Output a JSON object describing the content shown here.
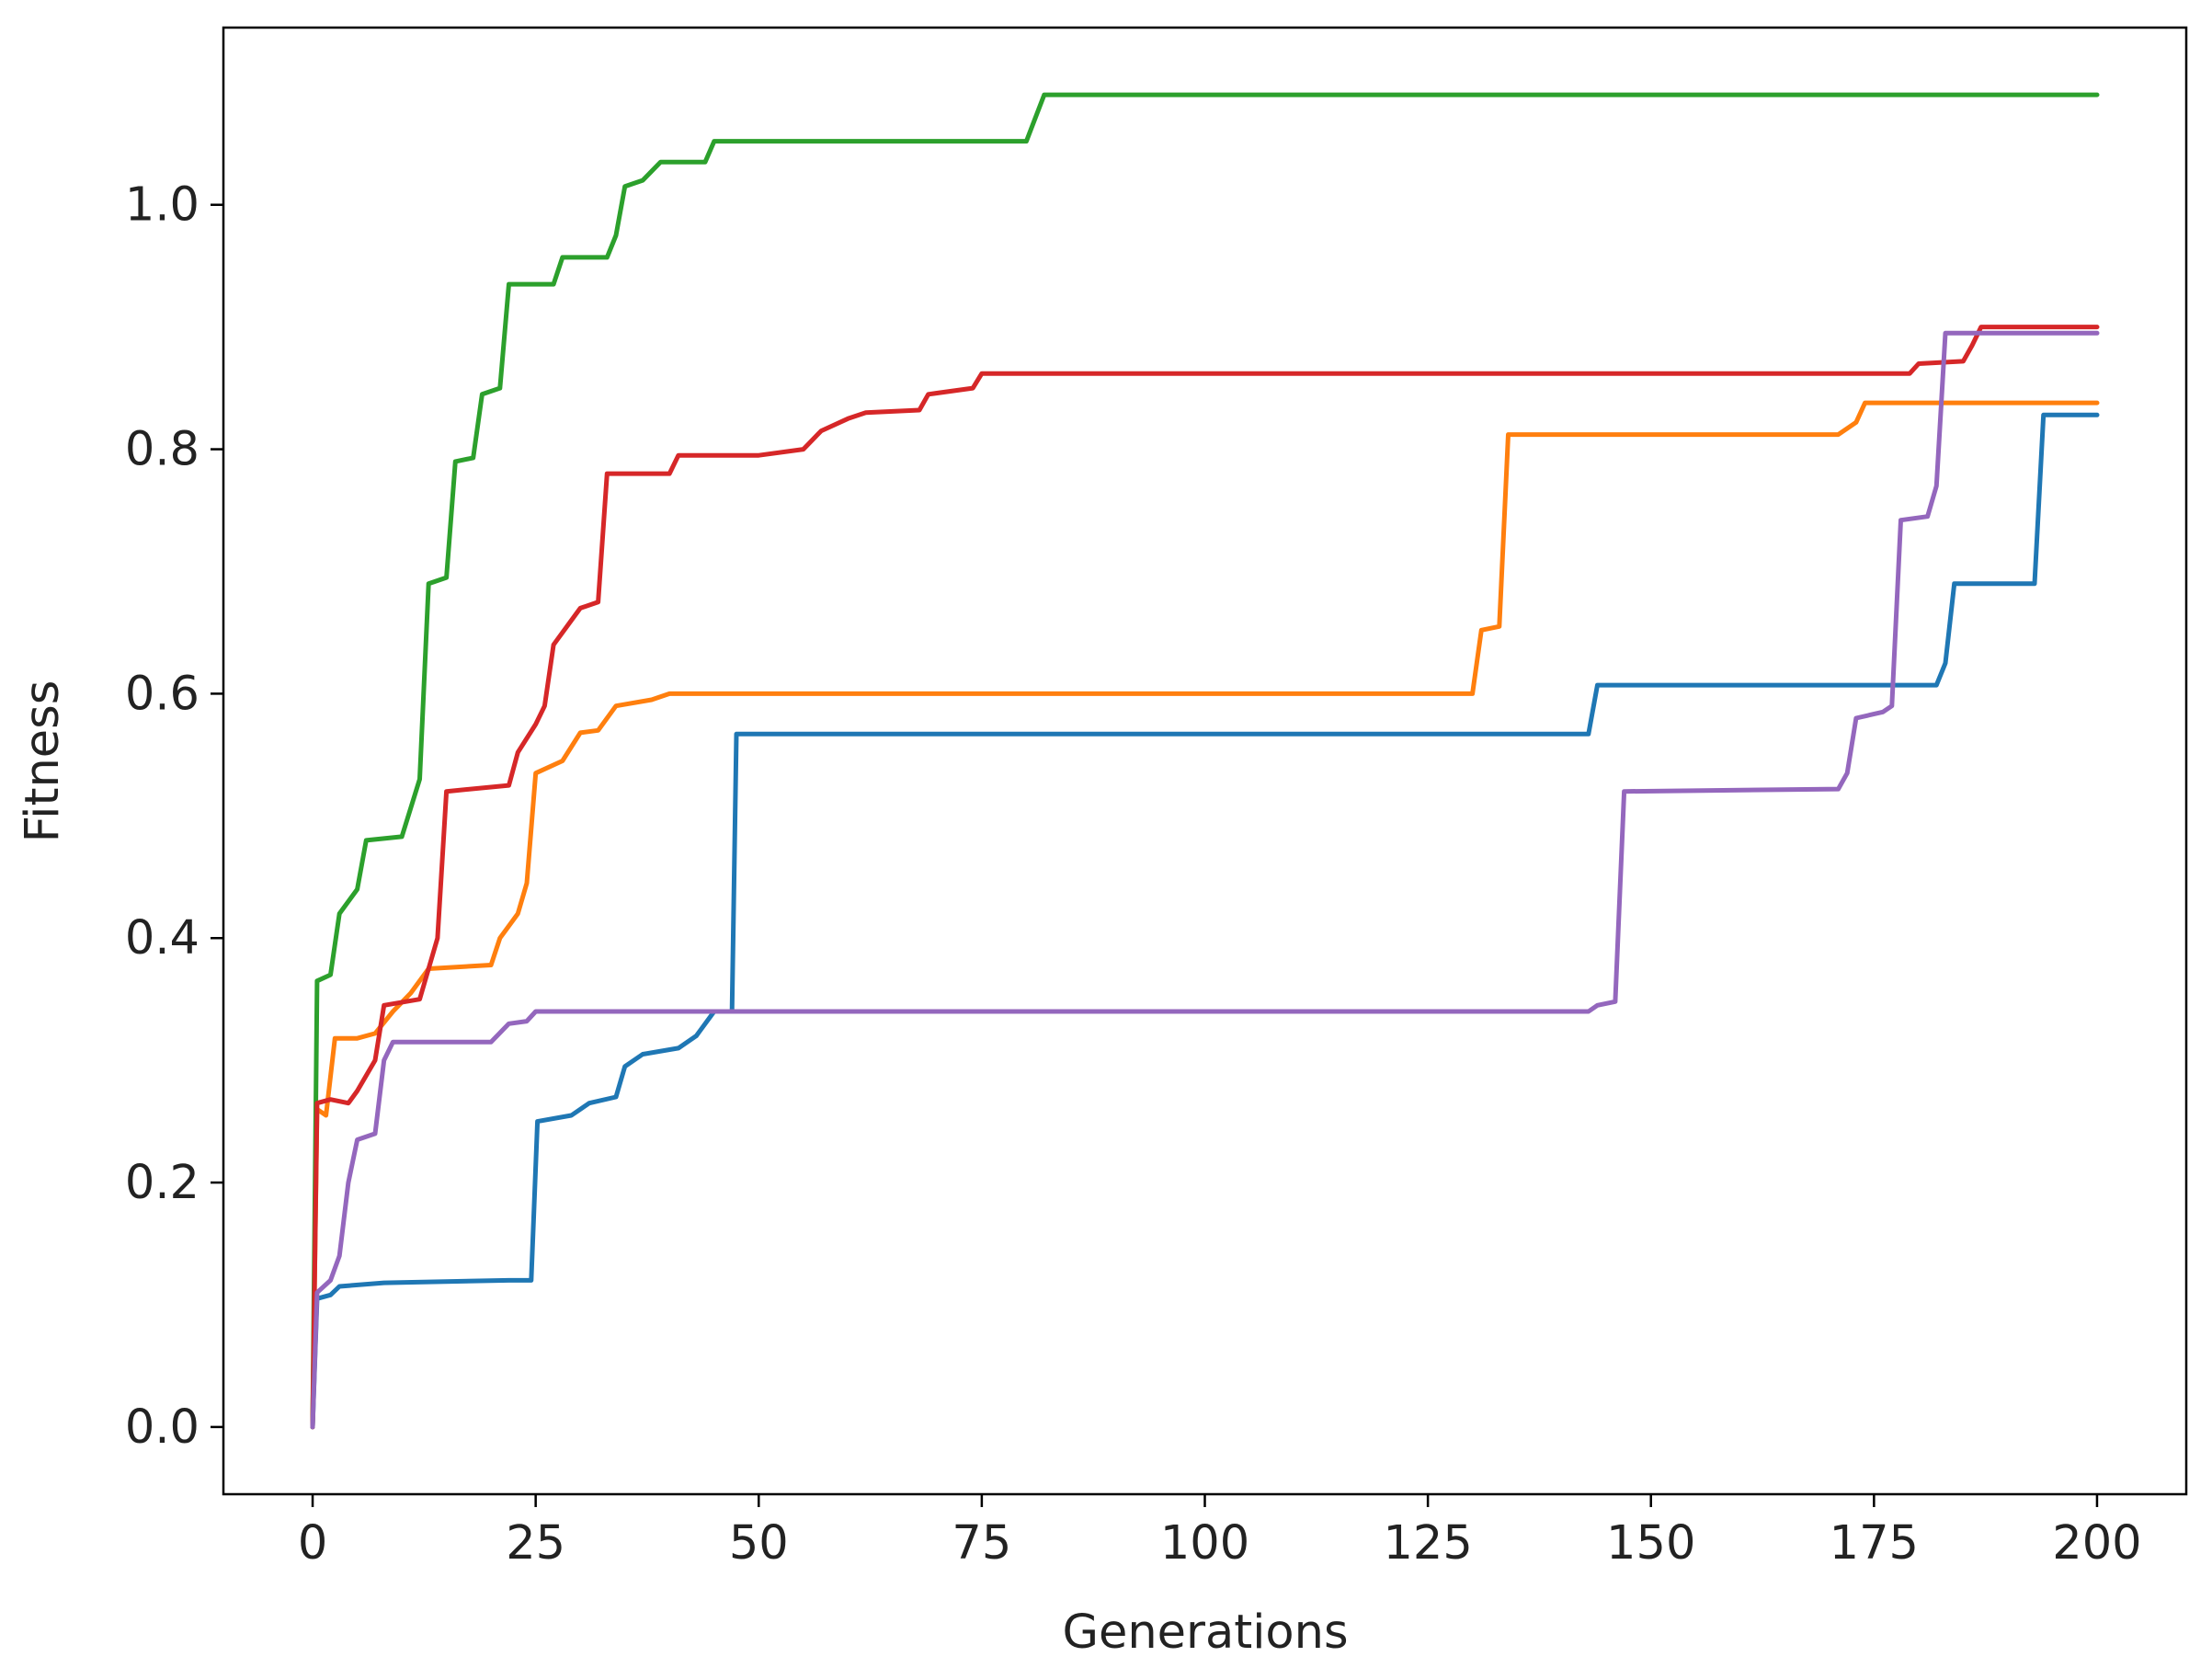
{
  "chart_data": {
    "type": "line",
    "title": "",
    "xlabel": "Generations",
    "ylabel": "Fitness",
    "xlim": [
      -10,
      210
    ],
    "ylim": [
      -0.055,
      1.145
    ],
    "xticks": [
      0,
      25,
      50,
      75,
      100,
      125,
      150,
      175,
      200
    ],
    "xtick_labels": [
      "0",
      "25",
      "50",
      "75",
      "100",
      "125",
      "150",
      "175",
      "200"
    ],
    "yticks": [
      0.0,
      0.2,
      0.4,
      0.6,
      0.8,
      1.0
    ],
    "ytick_labels": [
      "0.0",
      "0.2",
      "0.4",
      "0.6",
      "0.8",
      "1.0"
    ],
    "grid": false,
    "legend": "none",
    "series": [
      {
        "name": "blue",
        "color": "#1f77b4",
        "points": [
          [
            0,
            0.0
          ],
          [
            0.5,
            0.105
          ],
          [
            2,
            0.108
          ],
          [
            3,
            0.115
          ],
          [
            8,
            0.118
          ],
          [
            22,
            0.12
          ],
          [
            24.5,
            0.12
          ],
          [
            25.2,
            0.25
          ],
          [
            29,
            0.255
          ],
          [
            31,
            0.265
          ],
          [
            34,
            0.27
          ],
          [
            35,
            0.295
          ],
          [
            37,
            0.305
          ],
          [
            41,
            0.31
          ],
          [
            43,
            0.32
          ],
          [
            45,
            0.34
          ],
          [
            47,
            0.34
          ],
          [
            47.5,
            0.567
          ],
          [
            143,
            0.567
          ],
          [
            144,
            0.607
          ],
          [
            182,
            0.607
          ],
          [
            183,
            0.625
          ],
          [
            184,
            0.69
          ],
          [
            193,
            0.69
          ],
          [
            194,
            0.828
          ],
          [
            200,
            0.828
          ]
        ]
      },
      {
        "name": "orange",
        "color": "#ff7f0e",
        "points": [
          [
            0,
            0.0
          ],
          [
            0.5,
            0.26
          ],
          [
            1.5,
            0.255
          ],
          [
            2.5,
            0.318
          ],
          [
            5,
            0.318
          ],
          [
            7,
            0.322
          ],
          [
            9,
            0.34
          ],
          [
            11,
            0.355
          ],
          [
            13,
            0.375
          ],
          [
            20,
            0.378
          ],
          [
            21,
            0.4
          ],
          [
            23,
            0.42
          ],
          [
            24,
            0.445
          ],
          [
            25,
            0.535
          ],
          [
            28,
            0.545
          ],
          [
            30,
            0.568
          ],
          [
            32,
            0.57
          ],
          [
            34,
            0.59
          ],
          [
            38,
            0.595
          ],
          [
            40,
            0.6
          ],
          [
            90,
            0.6
          ],
          [
            130,
            0.6
          ],
          [
            131,
            0.652
          ],
          [
            133,
            0.655
          ],
          [
            134,
            0.812
          ],
          [
            171,
            0.812
          ],
          [
            173,
            0.822
          ],
          [
            174,
            0.838
          ],
          [
            200,
            0.838
          ]
        ]
      },
      {
        "name": "green",
        "color": "#2ca02c",
        "points": [
          [
            0,
            0.0
          ],
          [
            0.5,
            0.365
          ],
          [
            2,
            0.37
          ],
          [
            3,
            0.42
          ],
          [
            5,
            0.44
          ],
          [
            6,
            0.48
          ],
          [
            10,
            0.483
          ],
          [
            12,
            0.53
          ],
          [
            13,
            0.69
          ],
          [
            15,
            0.695
          ],
          [
            16,
            0.79
          ],
          [
            18,
            0.793
          ],
          [
            19,
            0.845
          ],
          [
            21,
            0.85
          ],
          [
            22,
            0.935
          ],
          [
            27,
            0.935
          ],
          [
            28,
            0.957
          ],
          [
            33,
            0.957
          ],
          [
            34,
            0.975
          ],
          [
            35,
            1.015
          ],
          [
            37,
            1.02
          ],
          [
            39,
            1.035
          ],
          [
            44,
            1.035
          ],
          [
            45,
            1.052
          ],
          [
            80,
            1.052
          ],
          [
            82,
            1.09
          ],
          [
            200,
            1.09
          ]
        ]
      },
      {
        "name": "red",
        "color": "#d62728",
        "points": [
          [
            0,
            0.0
          ],
          [
            0.5,
            0.265
          ],
          [
            2,
            0.268
          ],
          [
            4,
            0.265
          ],
          [
            5,
            0.275
          ],
          [
            7,
            0.3
          ],
          [
            8,
            0.345
          ],
          [
            12,
            0.35
          ],
          [
            14,
            0.4
          ],
          [
            15,
            0.52
          ],
          [
            22,
            0.525
          ],
          [
            23,
            0.552
          ],
          [
            25,
            0.575
          ],
          [
            26,
            0.59
          ],
          [
            27,
            0.64
          ],
          [
            29,
            0.66
          ],
          [
            30,
            0.67
          ],
          [
            32,
            0.675
          ],
          [
            33,
            0.78
          ],
          [
            40,
            0.78
          ],
          [
            41,
            0.795
          ],
          [
            50,
            0.795
          ],
          [
            55,
            0.8
          ],
          [
            57,
            0.815
          ],
          [
            60,
            0.825
          ],
          [
            62,
            0.83
          ],
          [
            68,
            0.832
          ],
          [
            69,
            0.845
          ],
          [
            74,
            0.85
          ],
          [
            75,
            0.862
          ],
          [
            150,
            0.862
          ],
          [
            179,
            0.862
          ],
          [
            180,
            0.87
          ],
          [
            185,
            0.872
          ],
          [
            186,
            0.885
          ],
          [
            187,
            0.9
          ],
          [
            200,
            0.9
          ]
        ]
      },
      {
        "name": "purple",
        "color": "#9467bd",
        "points": [
          [
            0,
            0.0
          ],
          [
            0.5,
            0.11
          ],
          [
            2,
            0.12
          ],
          [
            3,
            0.14
          ],
          [
            4,
            0.2
          ],
          [
            5,
            0.235
          ],
          [
            7,
            0.24
          ],
          [
            8,
            0.3
          ],
          [
            9,
            0.315
          ],
          [
            20,
            0.315
          ],
          [
            22,
            0.33
          ],
          [
            24,
            0.332
          ],
          [
            25,
            0.34
          ],
          [
            50,
            0.34
          ],
          [
            143,
            0.34
          ],
          [
            144,
            0.345
          ],
          [
            146,
            0.348
          ],
          [
            147,
            0.52
          ],
          [
            171,
            0.522
          ],
          [
            172,
            0.535
          ],
          [
            173,
            0.58
          ],
          [
            176,
            0.585
          ],
          [
            177,
            0.59
          ],
          [
            178,
            0.742
          ],
          [
            181,
            0.745
          ],
          [
            182,
            0.77
          ],
          [
            183,
            0.895
          ],
          [
            200,
            0.895
          ]
        ]
      }
    ]
  }
}
